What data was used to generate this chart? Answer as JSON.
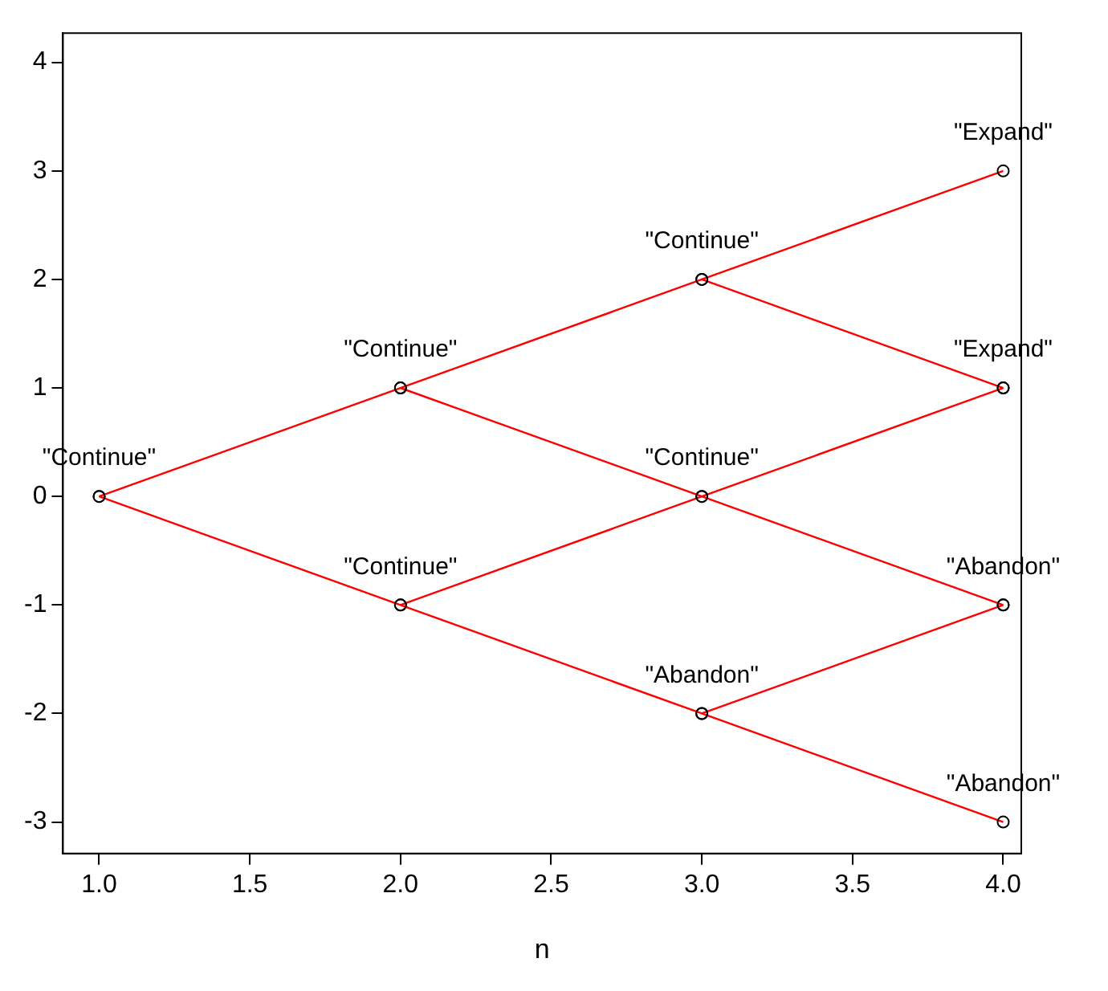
{
  "chart_data": {
    "type": "line",
    "xlabel": "n",
    "marker": "circle",
    "line_style": "solid",
    "grid": false,
    "legend": false,
    "xlim": [
      0.88,
      4.06
    ],
    "ylim": [
      -3.29,
      4.27
    ],
    "xticks": [
      {
        "value": 1,
        "label": "1.0"
      },
      {
        "value": 1.5,
        "label": "1.5"
      },
      {
        "value": 2,
        "label": "2.0"
      },
      {
        "value": 2.5,
        "label": "2.5"
      },
      {
        "value": 3,
        "label": "3.0"
      },
      {
        "value": 3.5,
        "label": "3.5"
      },
      {
        "value": 4,
        "label": "4.0"
      }
    ],
    "yticks": [
      -3,
      -2,
      -1,
      0,
      1,
      2,
      3,
      4
    ],
    "series": [
      {
        "color": "#ff0000",
        "x": [
          1,
          2,
          3,
          4
        ],
        "values": [
          0,
          1,
          2,
          3
        ]
      },
      {
        "color": "#ff0000",
        "x": [
          2,
          3,
          4
        ],
        "values": [
          1,
          0,
          -1
        ]
      },
      {
        "color": "#ff0000",
        "x": [
          1,
          2,
          3,
          4
        ],
        "values": [
          0,
          -1,
          -2,
          -3
        ]
      },
      {
        "color": "#ff0000",
        "x": [
          2,
          3,
          4
        ],
        "values": [
          -1,
          0,
          1
        ]
      },
      {
        "color": "#ff0000",
        "x": [
          3,
          4
        ],
        "values": [
          2,
          1
        ]
      },
      {
        "color": "#ff0000",
        "x": [
          3,
          4
        ],
        "values": [
          -2,
          -1
        ]
      }
    ],
    "annotations": [
      {
        "text": "\"Continue\"",
        "x": 1,
        "y": 0
      },
      {
        "text": "\"Continue\"",
        "x": 2,
        "y": 1
      },
      {
        "text": "\"Continue\"",
        "x": 2,
        "y": -1
      },
      {
        "text": "\"Continue\"",
        "x": 3,
        "y": 2
      },
      {
        "text": "\"Continue\"",
        "x": 3,
        "y": 0
      },
      {
        "text": "\"Abandon\"",
        "x": 3,
        "y": -2
      },
      {
        "text": "\"Expand\"",
        "x": 4,
        "y": 3
      },
      {
        "text": "\"Expand\"",
        "x": 4,
        "y": 1
      },
      {
        "text": "\"Abandon\"",
        "x": 4,
        "y": -1
      },
      {
        "text": "\"Abandon\"",
        "x": 4,
        "y": -3
      }
    ]
  }
}
